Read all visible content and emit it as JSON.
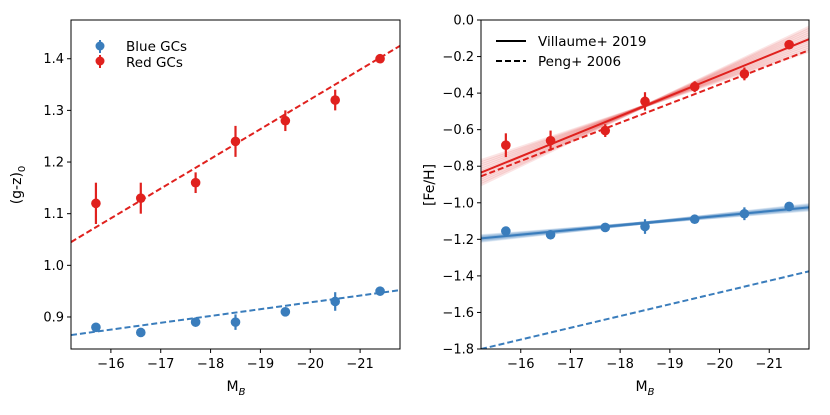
{
  "chart_data": [
    {
      "type": "scatter",
      "xlabel": "M",
      "xlabel_sub": "B",
      "ylabel": "(g-z)",
      "ylabel_sub": "0",
      "xlim": [
        -15.2,
        -21.8
      ],
      "ylim": [
        0.838,
        1.475
      ],
      "xticks": [
        -16,
        -17,
        -18,
        -19,
        -20,
        -21
      ],
      "xtick_labels": [
        "−16",
        "−17",
        "−18",
        "−19",
        "−20",
        "−21"
      ],
      "yticks": [
        0.9,
        1.0,
        1.1,
        1.2,
        1.3,
        1.4
      ],
      "ytick_labels": [
        "0.9",
        "1.0",
        "1.1",
        "1.2",
        "1.3",
        "1.4"
      ],
      "legend_position": "top-left",
      "series": [
        {
          "name": "Blue GCs",
          "color": "#3a7dbc",
          "x": [
            -15.7,
            -16.6,
            -17.7,
            -18.5,
            -19.5,
            -20.5,
            -21.4
          ],
          "y": [
            0.88,
            0.87,
            0.89,
            0.89,
            0.91,
            0.93,
            0.95
          ],
          "yerr": [
            0.005,
            0.005,
            0.005,
            0.015,
            0.008,
            0.018,
            0.005
          ],
          "fit": {
            "x": [
              -15.2,
              -21.8
            ],
            "y": [
              0.865,
              0.952
            ]
          }
        },
        {
          "name": "Red GCs",
          "color": "#e0211e",
          "x": [
            -15.7,
            -16.6,
            -17.7,
            -18.5,
            -19.5,
            -20.5,
            -21.4
          ],
          "y": [
            1.12,
            1.13,
            1.16,
            1.24,
            1.28,
            1.32,
            1.4
          ],
          "yerr": [
            0.04,
            0.03,
            0.02,
            0.03,
            0.02,
            0.02,
            0.006
          ],
          "fit": {
            "x": [
              -15.2,
              -21.8
            ],
            "y": [
              1.045,
              1.425
            ]
          }
        }
      ]
    },
    {
      "type": "scatter",
      "xlabel": "M",
      "xlabel_sub": "B",
      "ylabel": "[Fe/H]",
      "xlim": [
        -15.2,
        -21.8
      ],
      "ylim": [
        -1.8,
        0.0
      ],
      "xticks": [
        -16,
        -17,
        -18,
        -19,
        -20,
        -21
      ],
      "xtick_labels": [
        "−16",
        "−17",
        "−18",
        "−19",
        "−20",
        "−21"
      ],
      "yticks": [
        -1.8,
        -1.6,
        -1.4,
        -1.2,
        -1.0,
        -0.8,
        -0.6,
        -0.4,
        -0.2,
        0.0
      ],
      "ytick_labels": [
        "−1.8",
        "−1.6",
        "−1.4",
        "−1.2",
        "−1.0",
        "−0.8",
        "−0.6",
        "−0.4",
        "−0.2",
        "0.0"
      ],
      "legend_position": "top-left",
      "legend": [
        {
          "label": "Villaume+ 2019",
          "style": "solid"
        },
        {
          "label": "Peng+ 2006",
          "style": "dashed"
        }
      ],
      "series": [
        {
          "name": "Blue GCs",
          "color": "#3a7dbc",
          "x": [
            -15.7,
            -16.6,
            -17.7,
            -18.5,
            -19.5,
            -20.5,
            -21.4
          ],
          "y": [
            -1.155,
            -1.175,
            -1.135,
            -1.13,
            -1.09,
            -1.06,
            -1.02
          ],
          "yerr": [
            0.01,
            0.01,
            0.01,
            0.04,
            0.01,
            0.035,
            0.01
          ],
          "fit_solid": {
            "x": [
              -15.2,
              -21.8
            ],
            "y": [
              -1.195,
              -1.025
            ]
          },
          "fit_dashed": {
            "x": [
              -15.2,
              -21.8
            ],
            "y": [
              -1.8,
              -1.375
            ]
          }
        },
        {
          "name": "Red GCs",
          "color": "#e0211e",
          "x": [
            -15.7,
            -16.6,
            -17.7,
            -18.5,
            -19.5,
            -20.5,
            -21.4
          ],
          "y": [
            -0.685,
            -0.66,
            -0.605,
            -0.445,
            -0.365,
            -0.295,
            -0.135
          ],
          "yerr": [
            0.065,
            0.055,
            0.035,
            0.05,
            0.03,
            0.035,
            0.01
          ],
          "fit_solid": {
            "x": [
              -15.2,
              -21.8
            ],
            "y": [
              -0.835,
              -0.105
            ]
          },
          "fit_dashed": {
            "x": [
              -15.2,
              -21.8
            ],
            "y": [
              -0.855,
              -0.165
            ]
          }
        }
      ]
    }
  ]
}
